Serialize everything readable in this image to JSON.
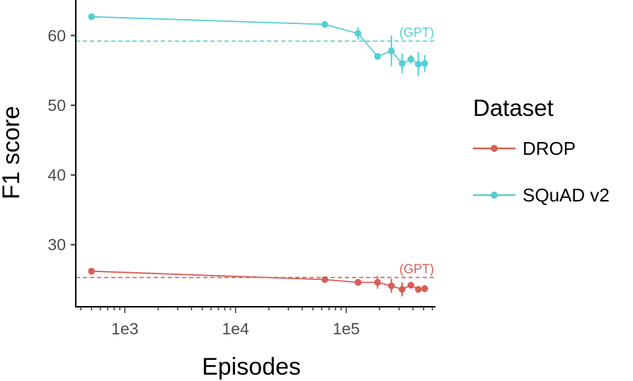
{
  "chart_data": {
    "type": "line",
    "xlabel": "Episodes",
    "ylabel": "F1 score",
    "x_scale": "log10",
    "xlim": [
      360,
      640000
    ],
    "ylim": [
      21.1,
      65.1
    ],
    "x_ticks": [
      {
        "value": 1000,
        "label": "1e3"
      },
      {
        "value": 10000,
        "label": "1e4"
      },
      {
        "value": 100000,
        "label": "1e5"
      }
    ],
    "y_ticks": [
      30,
      40,
      50,
      60
    ],
    "grid": false,
    "legend": {
      "title": "Dataset",
      "position": "right"
    },
    "series": [
      {
        "name": "DROP",
        "color": "#d65f54",
        "points": [
          {
            "x": 500,
            "y": 26.2,
            "err": 0.2
          },
          {
            "x": 64000,
            "y": 25.0,
            "err": 0.2
          },
          {
            "x": 128000,
            "y": 24.6,
            "err": 0.3
          },
          {
            "x": 192000,
            "y": 24.6,
            "err": 0.9
          },
          {
            "x": 256000,
            "y": 24.1,
            "err": 1.0
          },
          {
            "x": 320000,
            "y": 23.6,
            "err": 1.0
          },
          {
            "x": 384000,
            "y": 24.2,
            "err": 0.4
          },
          {
            "x": 448000,
            "y": 23.6,
            "err": 0.5
          },
          {
            "x": 512000,
            "y": 23.7,
            "err": 0.5
          }
        ],
        "reference": {
          "y": 25.3,
          "label": "(GPT)"
        }
      },
      {
        "name": "SQuAD v2",
        "color": "#55cfd6",
        "points": [
          {
            "x": 500,
            "y": 62.7,
            "err": 0.2
          },
          {
            "x": 64000,
            "y": 61.6,
            "err": 0.2
          },
          {
            "x": 128000,
            "y": 60.3,
            "err": 0.9
          },
          {
            "x": 192000,
            "y": 57.0,
            "err": 0.5
          },
          {
            "x": 256000,
            "y": 57.8,
            "err": 2.2
          },
          {
            "x": 320000,
            "y": 56.0,
            "err": 1.4
          },
          {
            "x": 384000,
            "y": 56.6,
            "err": 0.6
          },
          {
            "x": 448000,
            "y": 55.9,
            "err": 1.7
          },
          {
            "x": 512000,
            "y": 56.0,
            "err": 1.2
          }
        ],
        "reference": {
          "y": 59.2,
          "label": "(GPT)"
        }
      }
    ]
  }
}
